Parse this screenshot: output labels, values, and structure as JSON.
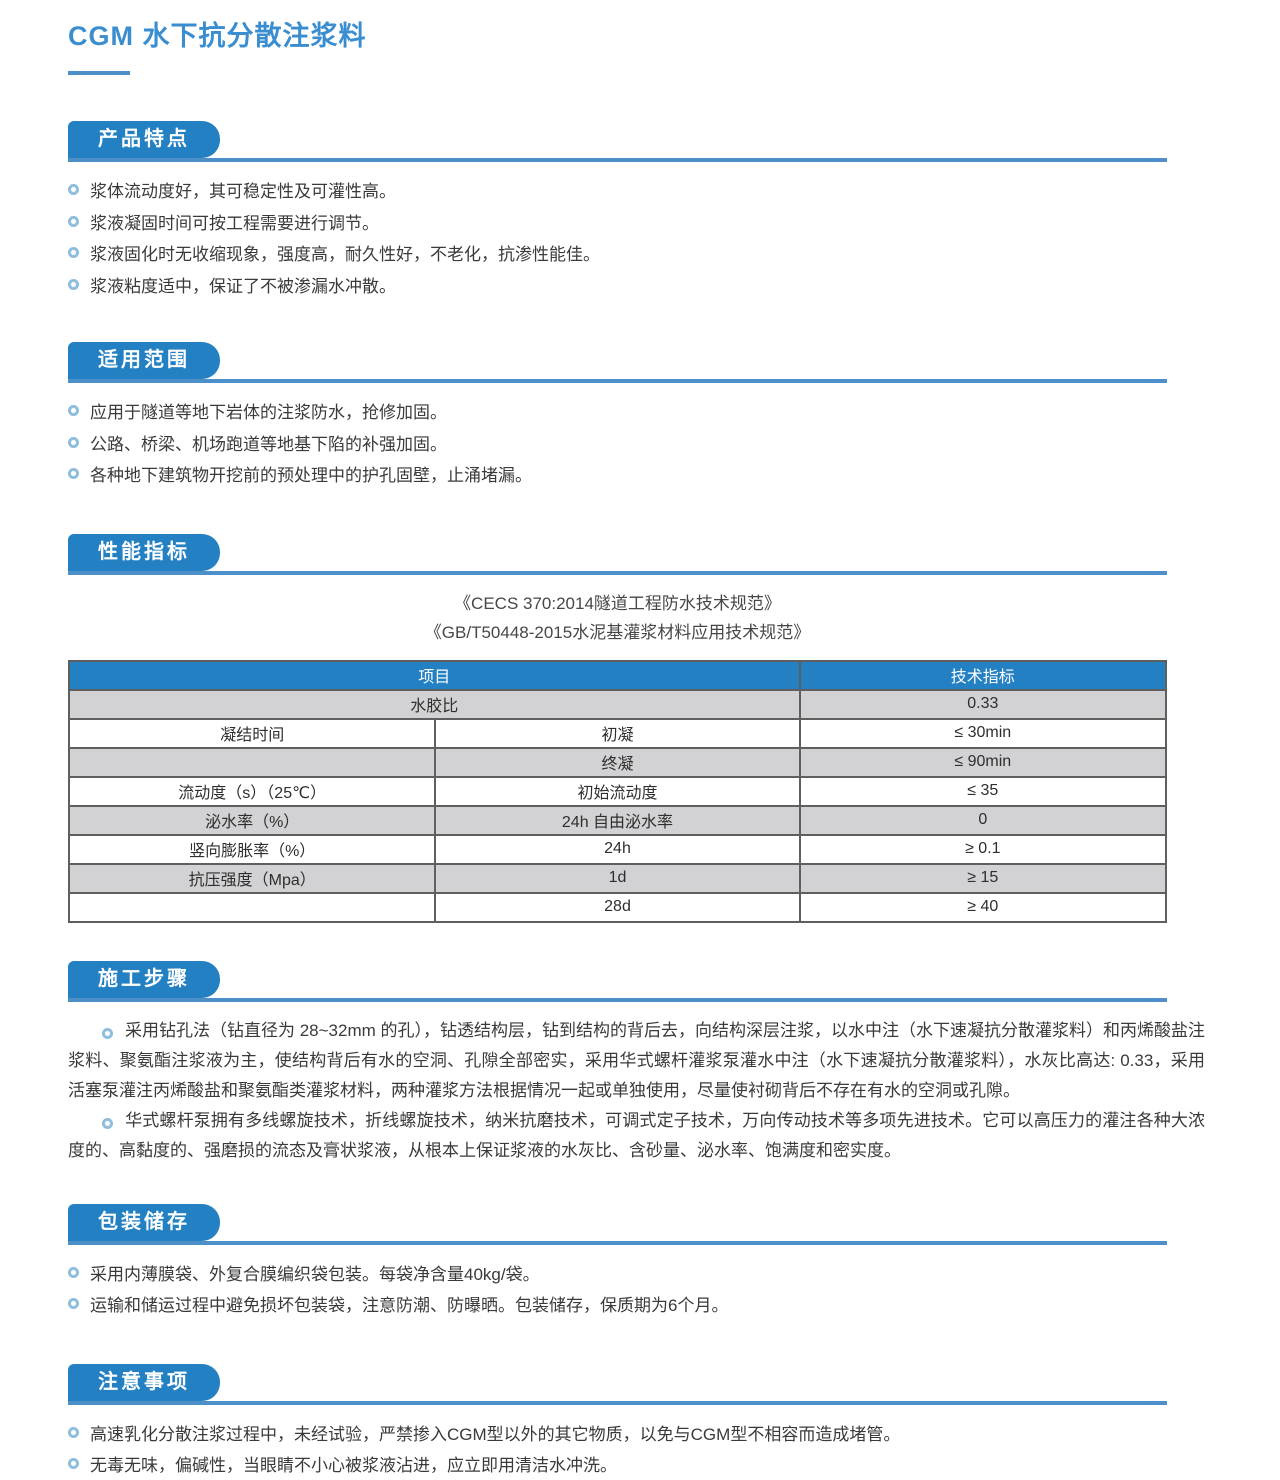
{
  "page": {
    "title": "CGM 水下抗分散注浆料"
  },
  "colors": {
    "accent": "#2380c3",
    "header_rule": "#4d8fc8",
    "table_row_gray": "#d2d2d4",
    "title_blue": "#3a8ecf",
    "bullet_blue": "#8cbcdc"
  },
  "sections": {
    "features": {
      "title": "产品特点",
      "items": [
        "浆体流动度好，其可稳定性及可灌性高。",
        "浆液凝固时间可按工程需要进行调节。",
        "浆液固化时无收缩现象，强度高，耐久性好，不老化，抗渗性能佳。",
        "浆液粘度适中，保证了不被渗漏水冲散。"
      ]
    },
    "scope": {
      "title": "适用范围",
      "items": [
        "应用于隧道等地下岩体的注浆防水，抢修加固。",
        "公路、桥梁、机场跑道等地基下陷的补强加固。",
        "各种地下建筑物开挖前的预处理中的护孔固壁，止涌堵漏。"
      ]
    },
    "performance": {
      "title": "性能指标",
      "standards": [
        "《CECS 370:2014隧道工程防水技术规范》",
        "《GB/T50448-2015水泥基灌浆材料应用技术规范》"
      ],
      "table": {
        "headers": [
          "项目",
          "技术指标"
        ],
        "rows": [
          {
            "colspan": 2,
            "cells": [
              "水胶比",
              "0.33"
            ]
          },
          {
            "cells": [
              "凝结时间",
              "初凝",
              "≤ 30min"
            ]
          },
          {
            "cells": [
              "",
              "终凝",
              "≤ 90min"
            ]
          },
          {
            "cells": [
              "流动度（s）（25℃）",
              "初始流动度",
              "≤ 35"
            ]
          },
          {
            "cells": [
              "泌水率（%）",
              "24h 自由泌水率",
              "0"
            ]
          },
          {
            "cells": [
              "竖向膨胀率（%）",
              "24h",
              "≥ 0.1"
            ]
          },
          {
            "cells": [
              "抗压强度（Mpa）",
              "1d",
              "≥ 15"
            ]
          },
          {
            "cells": [
              "",
              "28d",
              "≥ 40"
            ]
          }
        ]
      }
    },
    "construction": {
      "title": "施工步骤",
      "paragraphs": [
        "采用钻孔法（钻直径为 28~32mm 的孔），钻透结构层，钻到结构的背后去，向结构深层注浆，以水中注（水下速凝抗分散灌浆料）和丙烯酸盐注浆料、聚氨酯注浆液为主，使结构背后有水的空洞、孔隙全部密实，采用华式螺杆灌浆泵灌水中注（水下速凝抗分散灌浆料），水灰比高达: 0.33，采用活塞泵灌注丙烯酸盐和聚氨酯类灌浆材料，两种灌浆方法根据情况一起或单独使用，尽量使衬砌背后不存在有水的空洞或孔隙。",
        "华式螺杆泵拥有多线螺旋技术，折线螺旋技术，纳米抗磨技术，可调式定子技术，万向传动技术等多项先进技术。它可以高压力的灌注各种大浓度的、高黏度的、强磨损的流态及膏状浆液，从根本上保证浆液的水灰比、含砂量、泌水率、饱满度和密实度。"
      ]
    },
    "packaging": {
      "title": "包装储存",
      "items": [
        "采用内薄膜袋、外复合膜编织袋包装。每袋净含量40kg/袋。",
        "运输和储运过程中避免损坏包装袋，注意防潮、防曝晒。包装储存，保质期为6个月。"
      ]
    },
    "precautions": {
      "title": "注意事项",
      "items": [
        "高速乳化分散注浆过程中，未经试验，严禁掺入CGM型以外的其它物质，以免与CGM型不相容而造成堵管。",
        "无毒无味，偏碱性，当眼睛不小心被浆液沾进，应立即用清洁水冲洗。"
      ]
    }
  }
}
